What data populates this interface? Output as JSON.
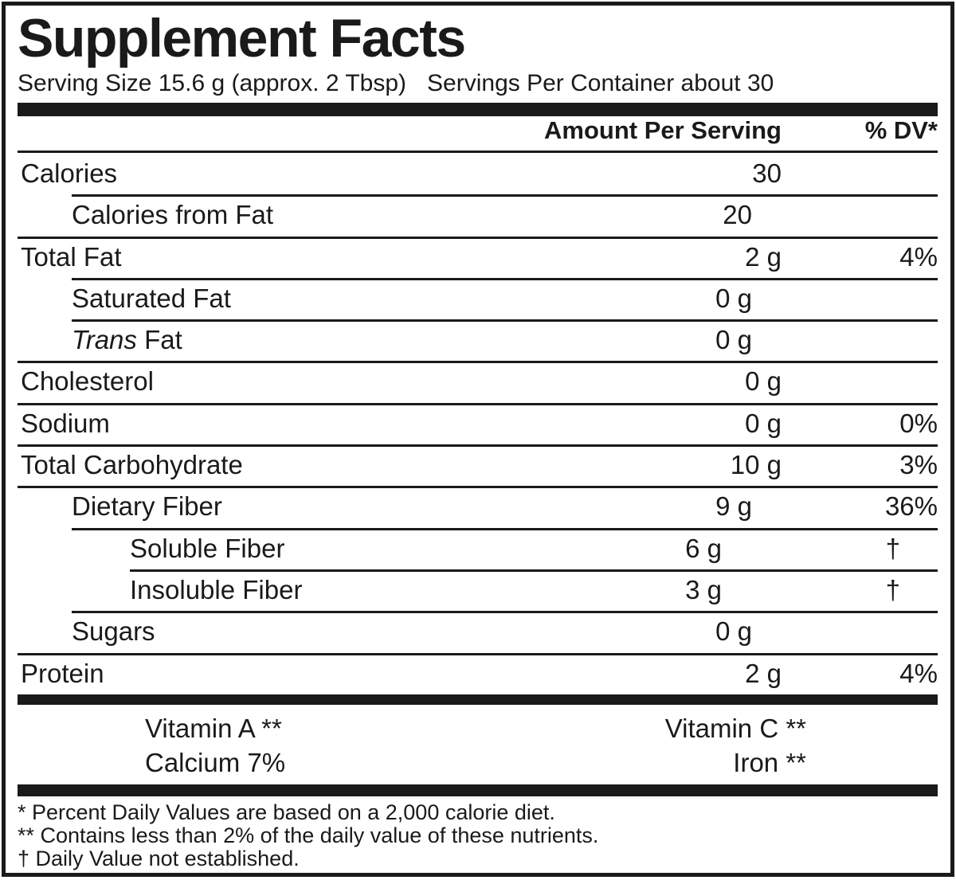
{
  "label": {
    "title": "Supplement Facts",
    "serving_size": "Serving Size 15.6 g (approx. 2 Tbsp)",
    "servings_per_container": "Servings Per Container about 30",
    "column_headers": {
      "amount": "Amount Per Serving",
      "dv": "% DV*"
    },
    "rows": [
      {
        "name": "Calories",
        "amount": "30",
        "dv": "",
        "indent": 0,
        "separator": "none"
      },
      {
        "name": "Calories from Fat",
        "amount": "20",
        "dv": "",
        "indent": 1,
        "separator": "indent1"
      },
      {
        "name": "Total Fat",
        "amount": "2 g",
        "dv": "4%",
        "indent": 0,
        "separator": "full"
      },
      {
        "name": "Saturated Fat",
        "amount": "0 g",
        "dv": "",
        "indent": 1,
        "separator": "indent1"
      },
      {
        "name_italic": "Trans",
        "name": " Fat",
        "amount": "0 g",
        "dv": "",
        "indent": 1,
        "separator": "indent1"
      },
      {
        "name": "Cholesterol",
        "amount": "0 g",
        "dv": "",
        "indent": 0,
        "separator": "full"
      },
      {
        "name": "Sodium",
        "amount": "0 g",
        "dv": "0%",
        "indent": 0,
        "separator": "full"
      },
      {
        "name": "Total Carbohydrate",
        "amount": "10 g",
        "dv": "3%",
        "indent": 0,
        "separator": "full"
      },
      {
        "name": "Dietary Fiber",
        "amount": "9 g",
        "dv": "36%",
        "indent": 1,
        "separator": "full"
      },
      {
        "name": "Soluble Fiber",
        "amount": "6 g",
        "dv": "†",
        "indent": 2,
        "separator": "indent1"
      },
      {
        "name": "Insoluble Fiber",
        "amount": "3 g",
        "dv": "†",
        "indent": 2,
        "separator": "indent2"
      },
      {
        "name": "Sugars",
        "amount": "0 g",
        "dv": "",
        "indent": 1,
        "separator": "indent1"
      },
      {
        "name": "Protein",
        "amount": "2 g",
        "dv": "4%",
        "indent": 0,
        "separator": "full"
      }
    ],
    "micronutrients": [
      {
        "left": "Vitamin A **",
        "right": "Vitamin C **"
      },
      {
        "left": "Calcium 7%",
        "right": "Iron **"
      }
    ],
    "footnotes": [
      "* Percent Daily Values are based on a 2,000 calorie diet.",
      "** Contains less than 2% of the daily value of these nutrients.",
      "† Daily Value not established."
    ],
    "colors": {
      "ink": "#1a1a1a",
      "background": "#ffffff"
    }
  }
}
